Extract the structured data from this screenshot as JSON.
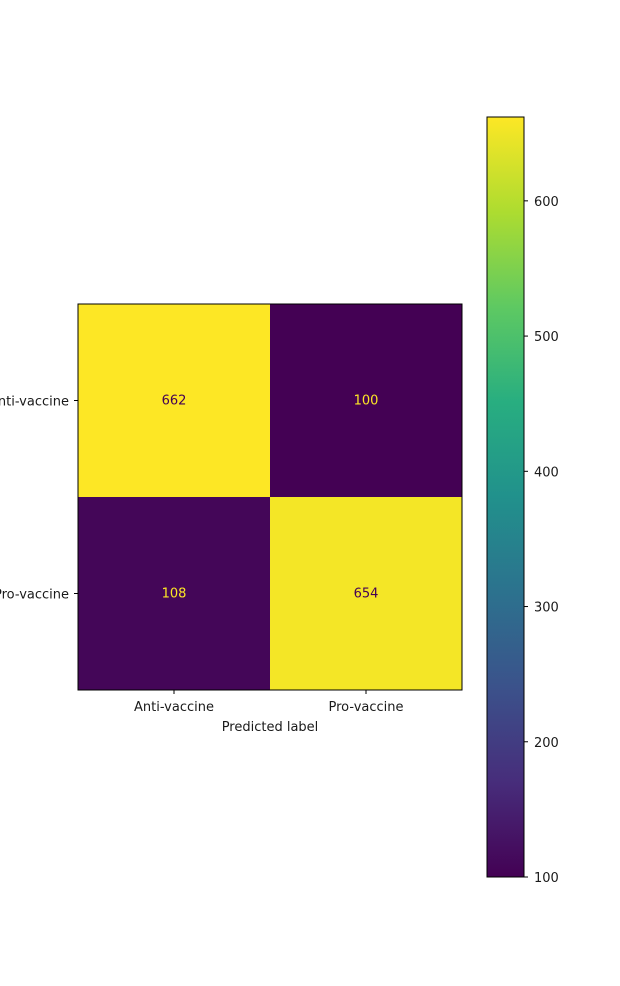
{
  "chart_data": {
    "type": "heatmap",
    "xlabel": "Predicted label",
    "ylabel": "",
    "x_categories": [
      "Anti-vaccine",
      "Pro-vaccine"
    ],
    "y_categories": [
      "Anti-vaccine",
      "Pro-vaccine"
    ],
    "values": [
      [
        662,
        100
      ],
      [
        108,
        654
      ]
    ],
    "colormap": "viridis",
    "colorbar": {
      "min": 100,
      "max": 662,
      "ticks": [
        100,
        200,
        300,
        400,
        500,
        600
      ]
    },
    "cell_text_colors": {
      "on_light": "#440154",
      "on_dark": "#fde725"
    },
    "colors": [
      "#440154",
      "#472d7b",
      "#3b528b",
      "#2c728e",
      "#21918c",
      "#28ae80",
      "#5ec962",
      "#addc30",
      "#fde725"
    ]
  }
}
